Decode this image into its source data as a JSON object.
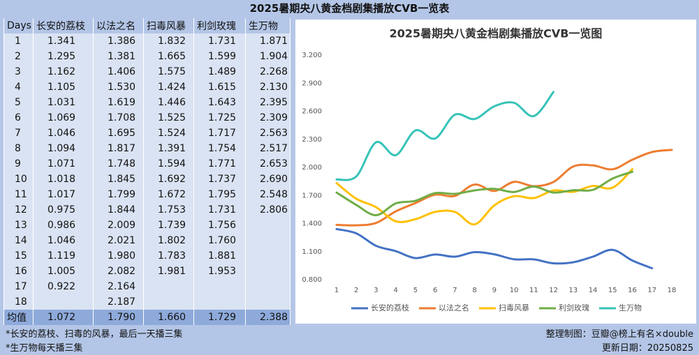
{
  "title": "2025暑期央八黄金档剧集播放CVB一览表",
  "table": {
    "header": [
      "Days",
      "长安的荔枝",
      "以法之名",
      "扫毒风暴",
      "利剑玫瑰",
      "生万物"
    ],
    "rows": [
      [
        "1",
        "1.341",
        "1.386",
        "1.832",
        "1.731",
        "1.871"
      ],
      [
        "2",
        "1.295",
        "1.381",
        "1.665",
        "1.599",
        "1.904"
      ],
      [
        "3",
        "1.162",
        "1.406",
        "1.575",
        "1.489",
        "2.268"
      ],
      [
        "4",
        "1.105",
        "1.530",
        "1.424",
        "1.615",
        "2.130"
      ],
      [
        "5",
        "1.031",
        "1.619",
        "1.446",
        "1.643",
        "2.395"
      ],
      [
        "6",
        "1.069",
        "1.708",
        "1.525",
        "1.725",
        "2.309"
      ],
      [
        "7",
        "1.046",
        "1.695",
        "1.524",
        "1.717",
        "2.563"
      ],
      [
        "8",
        "1.094",
        "1.817",
        "1.391",
        "1.754",
        "2.517"
      ],
      [
        "9",
        "1.071",
        "1.748",
        "1.594",
        "1.771",
        "2.653"
      ],
      [
        "10",
        "1.018",
        "1.845",
        "1.692",
        "1.737",
        "2.690"
      ],
      [
        "11",
        "1.017",
        "1.799",
        "1.672",
        "1.795",
        "2.548"
      ],
      [
        "12",
        "0.975",
        "1.844",
        "1.753",
        "1.731",
        "2.806"
      ],
      [
        "13",
        "0.986",
        "2.009",
        "1.739",
        "1.756"
      ],
      [
        "14",
        "1.046",
        "2.021",
        "1.802",
        "1.760"
      ],
      [
        "15",
        "1.119",
        "1.980",
        "1.783",
        "1.881"
      ],
      [
        "16",
        "1.005",
        "2.082",
        "1.981",
        "1.953"
      ],
      [
        "17",
        "0.922",
        "2.164"
      ],
      [
        "18",
        null,
        "2.187"
      ]
    ],
    "footer": [
      "均值",
      "1.072",
      "1.790",
      "1.660",
      "1.729",
      "2.388"
    ]
  },
  "chart_data": {
    "type": "line",
    "title": "2025暑期央八黄金档剧集播放CVB一览图",
    "categories": [
      "1",
      "2",
      "3",
      "4",
      "5",
      "6",
      "7",
      "8",
      "9",
      "10",
      "11",
      "12",
      "13",
      "14",
      "15",
      "16",
      "17",
      "18"
    ],
    "series": [
      {
        "name": "长安的荔枝",
        "color": "#4472c4",
        "values": [
          1.341,
          1.295,
          1.162,
          1.105,
          1.031,
          1.069,
          1.046,
          1.094,
          1.071,
          1.018,
          1.017,
          0.975,
          0.986,
          1.046,
          1.119,
          1.005,
          0.922,
          null
        ]
      },
      {
        "name": "以法之名",
        "color": "#ed7d31",
        "values": [
          1.386,
          1.381,
          1.406,
          1.53,
          1.619,
          1.708,
          1.695,
          1.817,
          1.748,
          1.845,
          1.799,
          1.844,
          2.009,
          2.021,
          1.98,
          2.082,
          2.164,
          2.187
        ]
      },
      {
        "name": "扫毒风暴",
        "color": "#ffc000",
        "values": [
          1.832,
          1.665,
          1.575,
          1.424,
          1.446,
          1.525,
          1.524,
          1.391,
          1.594,
          1.692,
          1.672,
          1.753,
          1.739,
          1.802,
          1.783,
          1.981,
          null,
          null
        ]
      },
      {
        "name": "利剑玫瑰",
        "color": "#70ad47",
        "values": [
          1.731,
          1.599,
          1.489,
          1.615,
          1.643,
          1.725,
          1.717,
          1.754,
          1.771,
          1.737,
          1.795,
          1.731,
          1.756,
          1.76,
          1.881,
          1.953,
          null,
          null
        ]
      },
      {
        "name": "生万物",
        "color": "#36c3b8",
        "values": [
          1.871,
          1.904,
          2.268,
          2.13,
          2.395,
          2.309,
          2.563,
          2.517,
          2.653,
          2.69,
          2.548,
          2.806,
          null,
          null,
          null,
          null,
          null,
          null
        ]
      }
    ],
    "ylim": [
      0.8,
      3.2
    ],
    "yticks": [
      {
        "value": 0.8,
        "label": "0.800"
      },
      {
        "value": 1.1,
        "label": "1.100"
      },
      {
        "value": 1.4,
        "label": "1.400"
      },
      {
        "value": 1.7,
        "label": "1.700"
      },
      {
        "value": 2.0,
        "label": "2.000"
      },
      {
        "value": 2.3,
        "label": "2.300"
      },
      {
        "value": 2.6,
        "label": "2.600"
      },
      {
        "value": 2.9,
        "label": "2.900"
      },
      {
        "value": 3.2,
        "label": "3.200"
      }
    ],
    "grid": false,
    "legend": "bottom"
  },
  "notes": [
    "*长安的荔枝、扫毒的风暴，最后一天播三集",
    "*生万物每天播三集"
  ],
  "credits": [
    "整理制图：豆瓣@榜上有名×double",
    "更新日期：20250825"
  ]
}
